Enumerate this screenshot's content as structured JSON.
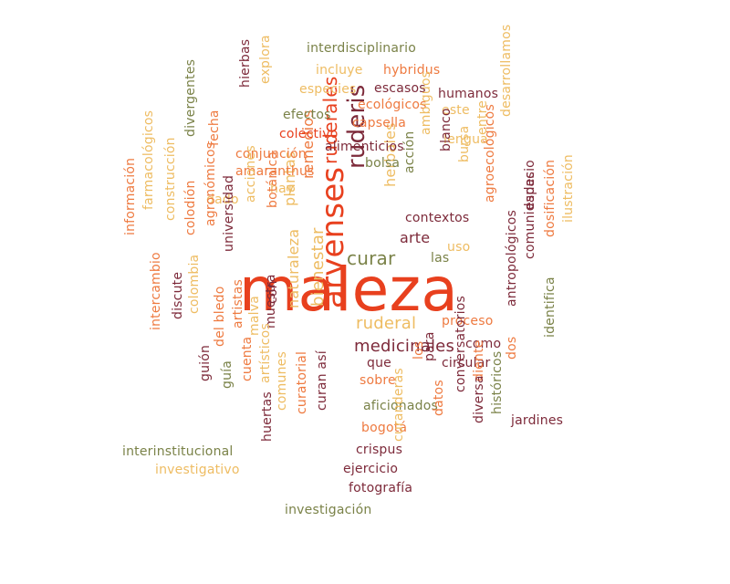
{
  "palette": {
    "red": "#e8401e",
    "orange": "#ee7a40",
    "gold": "#eebc62",
    "maroon": "#7d2a3a",
    "olive": "#7a8248"
  },
  "words": [
    {
      "text": "maleza",
      "color": "red"
    },
    {
      "text": "arvenses",
      "color": "red"
    },
    {
      "text": "ruderis",
      "color": "maroon"
    },
    {
      "text": "ruderales",
      "color": "red"
    },
    {
      "text": "curar",
      "color": "olive"
    },
    {
      "text": "ruderal",
      "color": "gold"
    },
    {
      "text": "medicinales",
      "color": "maroon"
    },
    {
      "text": "bienestar",
      "color": "gold"
    },
    {
      "text": "naturaleza",
      "color": "gold"
    },
    {
      "text": "remedios",
      "color": "orange"
    },
    {
      "text": "plantas",
      "color": "gold"
    },
    {
      "text": "herbales",
      "color": "gold"
    },
    {
      "text": "arte",
      "color": "maroon"
    },
    {
      "text": "interdisciplinario",
      "color": "olive"
    },
    {
      "text": "incluye",
      "color": "gold"
    },
    {
      "text": "hybridus",
      "color": "orange"
    },
    {
      "text": "especies",
      "color": "gold"
    },
    {
      "text": "escasos",
      "color": "maroon"
    },
    {
      "text": "humanos",
      "color": "maroon"
    },
    {
      "text": "ecológicos",
      "color": "orange"
    },
    {
      "text": "este",
      "color": "gold"
    },
    {
      "text": "efectos",
      "color": "olive"
    },
    {
      "text": "capsella",
      "color": "orange"
    },
    {
      "text": "colectivo",
      "color": "red"
    },
    {
      "text": "lengua",
      "color": "gold"
    },
    {
      "text": "alimenticios",
      "color": "maroon"
    },
    {
      "text": "conjunción",
      "color": "orange"
    },
    {
      "text": "bolsa",
      "color": "olive"
    },
    {
      "text": "amaranthus",
      "color": "orange"
    },
    {
      "text": "hay",
      "color": "gold"
    },
    {
      "text": "contextos",
      "color": "maroon"
    },
    {
      "text": "las",
      "color": "olive"
    },
    {
      "text": "uso",
      "color": "gold"
    },
    {
      "text": "proceso",
      "color": "orange"
    },
    {
      "text": "con",
      "color": "maroon"
    },
    {
      "text": "que",
      "color": "maroon"
    },
    {
      "text": "como",
      "color": "maroon"
    },
    {
      "text": "circular",
      "color": "maroon"
    },
    {
      "text": "sobre",
      "color": "orange"
    },
    {
      "text": "aficionados",
      "color": "olive"
    },
    {
      "text": "bogotá",
      "color": "orange"
    },
    {
      "text": "crispus",
      "color": "maroon"
    },
    {
      "text": "ejercicio",
      "color": "maroon"
    },
    {
      "text": "fotografía",
      "color": "maroon"
    },
    {
      "text": "investigación",
      "color": "olive"
    },
    {
      "text": "interinstitucional",
      "color": "olive"
    },
    {
      "text": "investigativo",
      "color": "gold"
    },
    {
      "text": "jardines",
      "color": "maroon"
    },
    {
      "text": "hierbas",
      "color": "maroon"
    },
    {
      "text": "explora",
      "color": "gold"
    },
    {
      "text": "divergentes",
      "color": "olive"
    },
    {
      "text": "fecha",
      "color": "orange"
    },
    {
      "text": "dado",
      "color": "gold"
    },
    {
      "text": "acciones",
      "color": "gold"
    },
    {
      "text": "botánica",
      "color": "orange"
    },
    {
      "text": "farmacológicos",
      "color": "gold"
    },
    {
      "text": "información",
      "color": "orange"
    },
    {
      "text": "construcción",
      "color": "gold"
    },
    {
      "text": "colodión",
      "color": "orange"
    },
    {
      "text": "agronómicos",
      "color": "orange"
    },
    {
      "text": "universidad",
      "color": "maroon"
    },
    {
      "text": "colombia",
      "color": "gold"
    },
    {
      "text": "discute",
      "color": "maroon"
    },
    {
      "text": "intercambio",
      "color": "orange"
    },
    {
      "text": "del bledo",
      "color": "orange"
    },
    {
      "text": "artistas",
      "color": "orange"
    },
    {
      "text": "malva",
      "color": "gold"
    },
    {
      "text": "muestra",
      "color": "maroon"
    },
    {
      "text": "guión",
      "color": "maroon"
    },
    {
      "text": "guía",
      "color": "olive"
    },
    {
      "text": "cuenta",
      "color": "orange"
    },
    {
      "text": "artísticos",
      "color": "gold"
    },
    {
      "text": "comunes",
      "color": "gold"
    },
    {
      "text": "curatorial",
      "color": "orange"
    },
    {
      "text": "huertas",
      "color": "maroon"
    },
    {
      "text": "curan así",
      "color": "maroon"
    },
    {
      "text": "ambiguos",
      "color": "gold"
    },
    {
      "text": "acción",
      "color": "olive"
    },
    {
      "text": "blanco",
      "color": "maroon"
    },
    {
      "text": "bursa",
      "color": "gold"
    },
    {
      "text": "entre",
      "color": "gold"
    },
    {
      "text": "desarrollamos",
      "color": "gold"
    },
    {
      "text": "agroecológicos",
      "color": "orange"
    },
    {
      "text": "espacio",
      "color": "maroon"
    },
    {
      "text": "comunidades",
      "color": "maroon"
    },
    {
      "text": "dosificación",
      "color": "orange"
    },
    {
      "text": "ilustración",
      "color": "gold"
    },
    {
      "text": "antropológicos",
      "color": "maroon"
    },
    {
      "text": "los",
      "color": "orange"
    },
    {
      "text": "para",
      "color": "maroon"
    },
    {
      "text": "dos",
      "color": "orange"
    },
    {
      "text": "identifica",
      "color": "olive"
    },
    {
      "text": "diente",
      "color": "orange"
    },
    {
      "text": "curanderas",
      "color": "gold"
    },
    {
      "text": "datos",
      "color": "orange"
    },
    {
      "text": "conversatorios",
      "color": "maroon"
    },
    {
      "text": "diversa",
      "color": "maroon"
    },
    {
      "text": "históricos",
      "color": "olive"
    }
  ]
}
